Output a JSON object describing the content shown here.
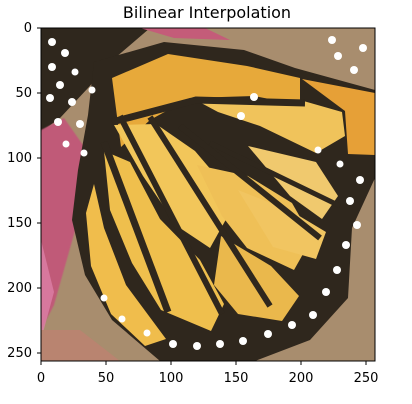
{
  "figure": {
    "title": "Bilinear Interpolation"
  },
  "image": {
    "description_hidden": false
  },
  "axes": {
    "x_ticks": [
      "0",
      "50",
      "100",
      "150",
      "200",
      "250"
    ],
    "y_ticks": [
      "0",
      "50",
      "100",
      "150",
      "200",
      "250"
    ]
  },
  "colors": {
    "wing_orange": "#e7a93a",
    "wing_yellow": "#f0c35b",
    "vein_black": "#2f271d",
    "flower_pink": "#c05a78",
    "background_tan": "#a88d6e",
    "spot_white": "#ffffff"
  }
}
